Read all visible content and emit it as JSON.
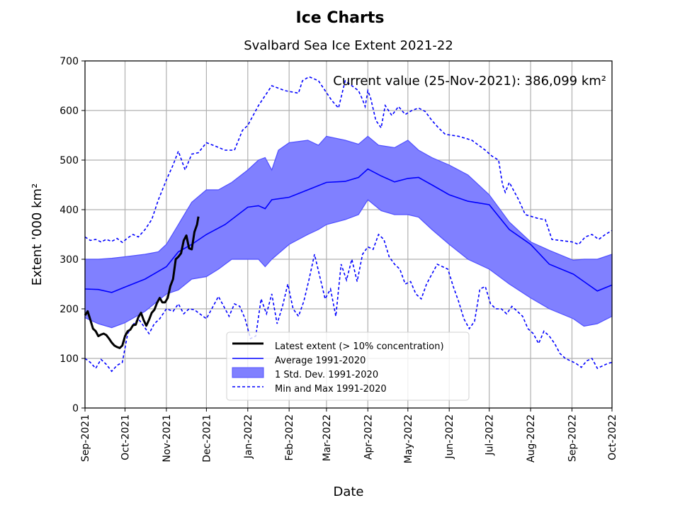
{
  "chart_data": {
    "type": "line",
    "suptitle": "Ice Charts",
    "title": "Svalbard Sea Ice Extent 2021-22",
    "xlabel": "Date",
    "ylabel": "Extent '000 km²",
    "x_start": "2021-09-01",
    "x_end": "2022-10-01",
    "ylim": [
      0,
      700
    ],
    "grid": true,
    "yticks": [
      0,
      100,
      200,
      300,
      400,
      500,
      600,
      700
    ],
    "xticks": [
      {
        "date": "2021-09-01",
        "label": "Sep-2021"
      },
      {
        "date": "2021-10-01",
        "label": "Oct-2021"
      },
      {
        "date": "2021-11-01",
        "label": "Nov-2021"
      },
      {
        "date": "2021-12-01",
        "label": "Dec-2021"
      },
      {
        "date": "2022-01-01",
        "label": "Jan-2022"
      },
      {
        "date": "2022-02-01",
        "label": "Feb-2022"
      },
      {
        "date": "2022-03-01",
        "label": "Mar-2022"
      },
      {
        "date": "2022-04-01",
        "label": "Apr-2022"
      },
      {
        "date": "2022-05-01",
        "label": "May-2022"
      },
      {
        "date": "2022-06-01",
        "label": "Jun-2022"
      },
      {
        "date": "2022-07-01",
        "label": "Jul-2022"
      },
      {
        "date": "2022-08-01",
        "label": "Aug-2022"
      },
      {
        "date": "2022-09-01",
        "label": "Sep-2022"
      },
      {
        "date": "2022-10-01",
        "label": "Oct-2022"
      }
    ],
    "annotation": "Current value (25-Nov-2021): 386,099 km²",
    "legend": {
      "placement": "lower-center",
      "entries": [
        {
          "key": "latest",
          "label": "Latest extent (> 10% concentration)"
        },
        {
          "key": "average",
          "label": "Average 1991-2020"
        },
        {
          "key": "std",
          "label": "1 Std. Dev. 1991-2020"
        },
        {
          "key": "minmax",
          "label": "Min and Max 1991-2020"
        }
      ]
    },
    "colors": {
      "latest": "#000000",
      "average": "#0000ff",
      "std_fill": "#8080ff",
      "std_edge": "#5050ff",
      "minmax": "#0000ff",
      "grid": "#b0b0b0"
    },
    "series": [
      {
        "name": "Latest extent (> 10% concentration)",
        "key": "latest",
        "days": [
          0,
          2,
          4,
          6,
          8,
          10,
          12,
          14,
          16,
          18,
          20,
          22,
          24,
          26,
          28,
          30,
          32,
          34,
          36,
          38,
          40,
          42,
          44,
          46,
          48,
          50,
          52,
          54,
          56,
          58,
          60,
          62,
          64,
          66,
          68,
          70,
          72,
          74,
          76,
          78,
          80,
          82,
          84,
          85
        ],
        "values": [
          187,
          195,
          178,
          160,
          155,
          145,
          148,
          150,
          147,
          140,
          132,
          126,
          123,
          121,
          126,
          145,
          155,
          158,
          167,
          168,
          183,
          192,
          177,
          166,
          178,
          192,
          198,
          212,
          222,
          213,
          213,
          222,
          246,
          260,
          300,
          305,
          312,
          338,
          348,
          322,
          320,
          355,
          370,
          386
        ]
      },
      {
        "name": "Average 1991-2020",
        "key": "average",
        "days": [
          0,
          10,
          20,
          30,
          45,
          61,
          70,
          80,
          91,
          105,
          122,
          130,
          135,
          140,
          153,
          167,
          181,
          195,
          205,
          212,
          222,
          232,
          242,
          250,
          260,
          273,
          287,
          303,
          318,
          334,
          348,
          366,
          374,
          384,
          395
        ],
        "values": [
          240,
          239,
          233,
          244,
          260,
          285,
          315,
          330,
          350,
          370,
          405,
          408,
          402,
          420,
          425,
          440,
          455,
          457,
          465,
          482,
          468,
          456,
          463,
          465,
          450,
          430,
          417,
          410,
          360,
          330,
          290,
          270,
          255,
          236,
          248
        ]
      },
      {
        "name": "1 Std. Dev. upper",
        "key": "std_upper",
        "days": [
          0,
          10,
          20,
          30,
          45,
          55,
          61,
          70,
          80,
          91,
          100,
          110,
          122,
          130,
          135,
          140,
          145,
          153,
          167,
          175,
          181,
          195,
          205,
          212,
          220,
          232,
          242,
          250,
          260,
          273,
          287,
          303,
          318,
          334,
          348,
          366,
          374,
          384,
          395
        ],
        "values": [
          300,
          300,
          302,
          305,
          310,
          315,
          330,
          370,
          415,
          440,
          440,
          455,
          480,
          500,
          505,
          480,
          520,
          535,
          540,
          530,
          548,
          540,
          532,
          548,
          530,
          525,
          540,
          520,
          505,
          490,
          470,
          430,
          375,
          335,
          318,
          298,
          300,
          300,
          310
        ]
      },
      {
        "name": "1 Std. Dev. lower",
        "key": "std_lower",
        "days": [
          0,
          10,
          20,
          30,
          45,
          61,
          70,
          80,
          91,
          100,
          110,
          116,
          122,
          130,
          135,
          140,
          153,
          167,
          175,
          181,
          195,
          205,
          212,
          222,
          232,
          242,
          250,
          260,
          273,
          287,
          303,
          318,
          334,
          348,
          366,
          374,
          384,
          395
        ],
        "values": [
          182,
          170,
          162,
          172,
          195,
          230,
          238,
          260,
          265,
          280,
          300,
          300,
          300,
          300,
          285,
          300,
          330,
          350,
          360,
          370,
          380,
          390,
          420,
          398,
          390,
          390,
          385,
          360,
          330,
          300,
          280,
          250,
          222,
          200,
          180,
          165,
          170,
          185
        ]
      },
      {
        "name": "Max 1991-2020",
        "key": "max",
        "days": [
          0,
          4,
          8,
          12,
          16,
          20,
          24,
          28,
          32,
          36,
          40,
          45,
          50,
          55,
          61,
          66,
          70,
          75,
          80,
          85,
          91,
          96,
          105,
          112,
          118,
          122,
          130,
          140,
          150,
          160,
          163,
          168,
          175,
          180,
          185,
          190,
          195,
          200,
          205,
          208,
          210,
          212,
          214,
          218,
          222,
          225,
          230,
          235,
          240,
          245,
          250,
          255,
          260,
          265,
          270,
          280,
          290,
          300,
          305,
          310,
          313,
          315,
          318,
          325,
          330,
          340,
          345,
          350,
          365,
          370,
          375,
          380,
          385,
          390,
          395
        ],
        "values": [
          345,
          338,
          340,
          335,
          340,
          336,
          342,
          334,
          343,
          350,
          345,
          360,
          380,
          420,
          460,
          490,
          518,
          480,
          512,
          515,
          535,
          530,
          520,
          520,
          560,
          570,
          610,
          650,
          640,
          635,
          660,
          668,
          660,
          640,
          620,
          605,
          660,
          650,
          640,
          622,
          608,
          640,
          626,
          580,
          565,
          610,
          590,
          608,
          592,
          600,
          605,
          598,
          580,
          565,
          552,
          548,
          540,
          520,
          508,
          500,
          450,
          435,
          455,
          420,
          390,
          382,
          380,
          340,
          335,
          330,
          345,
          350,
          340,
          350,
          358
        ]
      },
      {
        "name": "Min 1991-2020",
        "key": "min",
        "days": [
          0,
          4,
          8,
          12,
          16,
          20,
          24,
          28,
          32,
          36,
          40,
          44,
          48,
          52,
          56,
          61,
          66,
          70,
          74,
          78,
          82,
          86,
          91,
          96,
          100,
          104,
          108,
          112,
          116,
          120,
          124,
          128,
          132,
          136,
          140,
          144,
          148,
          152,
          156,
          160,
          164,
          168,
          172,
          176,
          180,
          184,
          188,
          192,
          196,
          200,
          204,
          208,
          212,
          216,
          220,
          224,
          228,
          232,
          236,
          240,
          244,
          248,
          252,
          256,
          260,
          264,
          268,
          272,
          276,
          280,
          284,
          288,
          292,
          296,
          300,
          304,
          308,
          312,
          316,
          320,
          324,
          328,
          332,
          336,
          340,
          344,
          348,
          352,
          356,
          360,
          364,
          368,
          372,
          376,
          380,
          384,
          388,
          392,
          395
        ],
        "values": [
          100,
          92,
          80,
          98,
          88,
          74,
          86,
          92,
          150,
          168,
          180,
          165,
          150,
          170,
          180,
          200,
          195,
          210,
          190,
          200,
          198,
          190,
          180,
          205,
          225,
          205,
          185,
          210,
          205,
          180,
          140,
          145,
          220,
          190,
          230,
          170,
          205,
          250,
          200,
          185,
          215,
          260,
          310,
          265,
          220,
          240,
          185,
          290,
          258,
          300,
          255,
          310,
          325,
          320,
          350,
          340,
          305,
          290,
          280,
          250,
          255,
          230,
          220,
          250,
          270,
          290,
          285,
          280,
          245,
          215,
          180,
          160,
          175,
          240,
          245,
          210,
          200,
          200,
          190,
          205,
          195,
          185,
          160,
          150,
          130,
          155,
          145,
          130,
          110,
          100,
          95,
          90,
          82,
          95,
          100,
          80,
          85,
          90,
          92
        ]
      }
    ]
  }
}
